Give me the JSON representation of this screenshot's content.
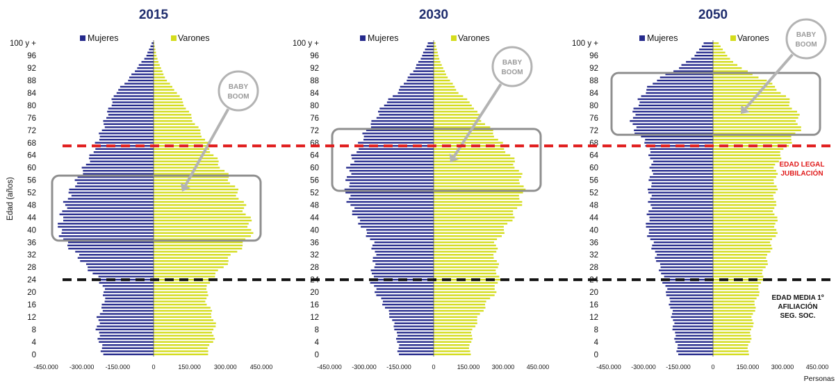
{
  "chart_data": [
    {
      "type": "bar",
      "orientation": "horizontal-population-pyramid",
      "title": "2015",
      "ylabel": "Edad (años)",
      "xlim": [
        -450000,
        450000
      ],
      "xticks": [
        "-450.000",
        "-300.000",
        "-150.000",
        "0",
        "150.000",
        "300.000",
        "450.000"
      ],
      "yticks": [
        "0",
        "4",
        "8",
        "12",
        "16",
        "20",
        "24",
        "28",
        "32",
        "36",
        "40",
        "44",
        "48",
        "52",
        "56",
        "60",
        "64",
        "68",
        "72",
        "76",
        "80",
        "84",
        "88",
        "92",
        "96",
        "100 y +"
      ],
      "legend": [
        "Mujeres",
        "Varones"
      ],
      "legend_position": "top",
      "baby_boom_ages": [
        37,
        57
      ],
      "baby_boom_label": "BABY BOOM",
      "profile_ages": [
        0,
        4,
        8,
        12,
        16,
        20,
        24,
        28,
        32,
        36,
        40,
        44,
        48,
        52,
        56,
        60,
        64,
        68,
        72,
        76,
        80,
        84,
        88,
        92,
        96,
        100
      ],
      "mujeres": [
        -210000,
        -225000,
        -235000,
        -230000,
        -210000,
        -205000,
        -225000,
        -280000,
        -320000,
        -370000,
        -395000,
        -385000,
        -370000,
        -350000,
        -320000,
        -290000,
        -260000,
        -240000,
        -215000,
        -200000,
        -180000,
        -160000,
        -110000,
        -70000,
        -30000,
        -8000
      ],
      "varones": [
        220000,
        245000,
        255000,
        250000,
        225000,
        220000,
        240000,
        290000,
        330000,
        385000,
        410000,
        395000,
        375000,
        350000,
        320000,
        285000,
        250000,
        225000,
        190000,
        160000,
        130000,
        100000,
        55000,
        30000,
        12000,
        3000
      ]
    },
    {
      "type": "bar",
      "orientation": "horizontal-population-pyramid",
      "title": "2030",
      "xlim": [
        -450000,
        450000
      ],
      "xticks": [
        "-450.000",
        "-300.000",
        "-150.000",
        "0",
        "150.000",
        "300.000",
        "450.000"
      ],
      "yticks": [
        "0",
        "4",
        "8",
        "12",
        "16",
        "20",
        "24",
        "28",
        "32",
        "36",
        "40",
        "44",
        "48",
        "52",
        "56",
        "60",
        "64",
        "68",
        "72",
        "76",
        "80",
        "84",
        "88",
        "92",
        "96",
        "100 y +"
      ],
      "legend": [
        "Mujeres",
        "Varones"
      ],
      "legend_position": "top",
      "baby_boom_ages": [
        53,
        72
      ],
      "baby_boom_label": "BABY BOOM",
      "profile_ages": [
        0,
        4,
        8,
        12,
        16,
        20,
        24,
        28,
        32,
        36,
        40,
        44,
        48,
        52,
        56,
        60,
        64,
        68,
        72,
        76,
        80,
        84,
        88,
        92,
        96,
        100
      ],
      "mujeres": [
        -150000,
        -155000,
        -165000,
        -185000,
        -215000,
        -250000,
        -270000,
        -260000,
        -255000,
        -265000,
        -300000,
        -335000,
        -360000,
        -375000,
        -370000,
        -365000,
        -345000,
        -320000,
        -290000,
        -250000,
        -220000,
        -160000,
        -120000,
        -80000,
        -50000,
        -25000
      ],
      "varones": [
        155000,
        160000,
        170000,
        195000,
        225000,
        265000,
        280000,
        275000,
        265000,
        270000,
        305000,
        340000,
        370000,
        385000,
        380000,
        360000,
        330000,
        290000,
        250000,
        200000,
        170000,
        110000,
        70000,
        40000,
        20000,
        8000
      ]
    },
    {
      "type": "bar",
      "orientation": "horizontal-population-pyramid",
      "title": "2050",
      "xlabel": "Personas",
      "xlim": [
        -450000,
        450000
      ],
      "xticks": [
        "-450.000",
        "-300.000",
        "-150.000",
        "0",
        "150.000",
        "300.000",
        "450.000"
      ],
      "yticks": [
        "0",
        "4",
        "8",
        "12",
        "16",
        "20",
        "24",
        "28",
        "32",
        "36",
        "40",
        "44",
        "48",
        "52",
        "56",
        "60",
        "64",
        "68",
        "72",
        "76",
        "80",
        "84",
        "88",
        "92",
        "96",
        "100 y +"
      ],
      "legend": [
        "Mujeres",
        "Varones"
      ],
      "legend_position": "top",
      "baby_boom_ages": [
        71,
        90
      ],
      "baby_boom_label": "BABY BOOM",
      "profile_ages": [
        0,
        4,
        8,
        12,
        16,
        20,
        24,
        28,
        32,
        36,
        40,
        44,
        48,
        52,
        56,
        60,
        64,
        68,
        72,
        76,
        80,
        84,
        88,
        92,
        96,
        100
      ],
      "mujeres": [
        -150000,
        -160000,
        -170000,
        -175000,
        -185000,
        -200000,
        -215000,
        -230000,
        -250000,
        -265000,
        -285000,
        -280000,
        -270000,
        -275000,
        -270000,
        -265000,
        -270000,
        -290000,
        -340000,
        -350000,
        -330000,
        -300000,
        -250000,
        -150000,
        -80000,
        -40000
      ],
      "varones": [
        150000,
        158000,
        168000,
        172000,
        182000,
        196000,
        210000,
        225000,
        240000,
        255000,
        275000,
        270000,
        265000,
        270000,
        270000,
        270000,
        290000,
        330000,
        370000,
        370000,
        340000,
        300000,
        230000,
        120000,
        60000,
        25000
      ]
    }
  ],
  "reference_lines": [
    {
      "age": 67,
      "label": [
        "EDAD LEGAL",
        "JUBILACIÓN"
      ],
      "color": "#e01b1b"
    },
    {
      "age": 24,
      "label": [
        "EDAD MEDIA 1º",
        "AFILIACIÓN",
        "SEG. SOC."
      ],
      "color": "#111111"
    }
  ],
  "colors": {
    "mujeres": "#252a8c",
    "varones": "#d4dc1c",
    "box": "#8f8f8f",
    "title": "#1f2d6e"
  }
}
